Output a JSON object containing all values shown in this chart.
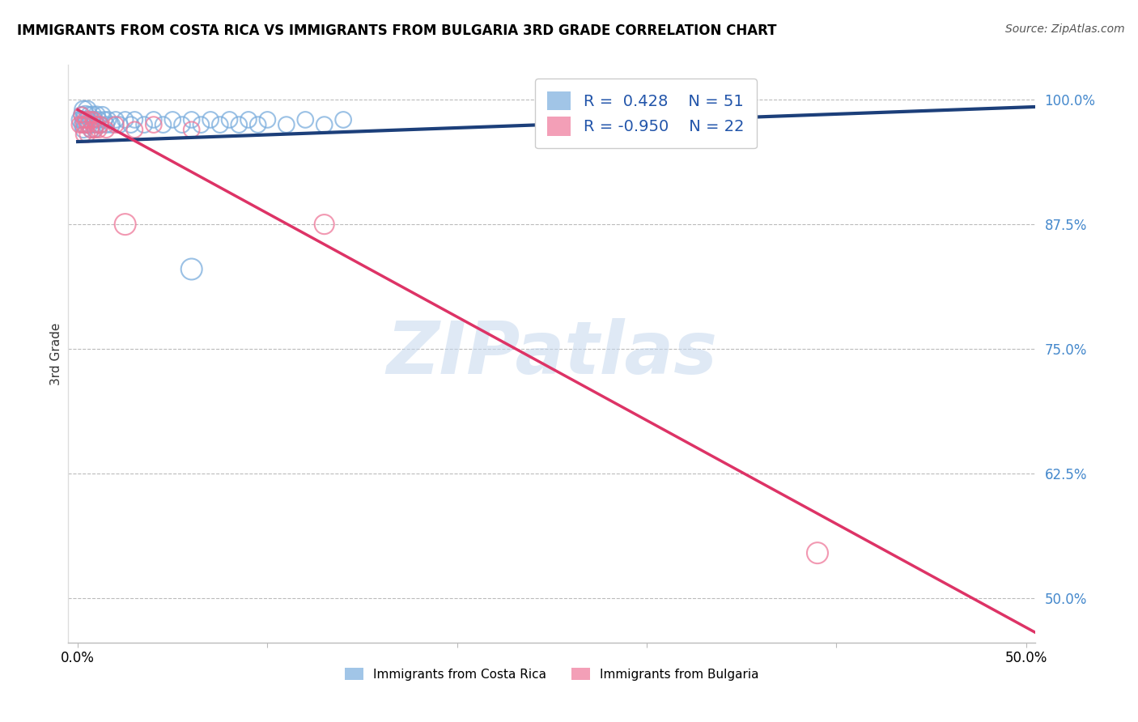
{
  "title": "IMMIGRANTS FROM COSTA RICA VS IMMIGRANTS FROM BULGARIA 3RD GRADE CORRELATION CHART",
  "source_text": "Source: ZipAtlas.com",
  "ylabel": "3rd Grade",
  "legend_left_label": "Immigrants from Costa Rica",
  "legend_right_label": "Immigrants from Bulgaria",
  "xlim": [
    -0.005,
    0.505
  ],
  "ylim": [
    0.455,
    1.035
  ],
  "yticks": [
    0.5,
    0.625,
    0.75,
    0.875,
    1.0
  ],
  "ytick_labels": [
    "50.0%",
    "62.5%",
    "75.0%",
    "87.5%",
    "100.0%"
  ],
  "xticks": [
    0.0,
    0.1,
    0.2,
    0.3,
    0.4,
    0.5
  ],
  "xtick_labels": [
    "0.0%",
    "",
    "",
    "",
    "",
    "50.0%"
  ],
  "blue_R": 0.428,
  "blue_N": 51,
  "pink_R": -0.95,
  "pink_N": 22,
  "blue_color": "#7AADDD",
  "pink_color": "#EE7799",
  "blue_line_color": "#1C3F7A",
  "pink_line_color": "#DD3366",
  "legend_text_color": "#2255AA",
  "watermark_color": "#C5D8EE",
  "grid_color": "#BBBBBB",
  "ytick_color": "#4488CC",
  "blue_scatter_x": [
    0.001,
    0.002,
    0.002,
    0.003,
    0.003,
    0.003,
    0.004,
    0.004,
    0.005,
    0.005,
    0.006,
    0.006,
    0.007,
    0.007,
    0.008,
    0.008,
    0.009,
    0.009,
    0.01,
    0.01,
    0.011,
    0.012,
    0.013,
    0.014,
    0.015,
    0.016,
    0.018,
    0.02,
    0.022,
    0.025,
    0.028,
    0.03,
    0.035,
    0.04,
    0.045,
    0.05,
    0.055,
    0.06,
    0.065,
    0.07,
    0.075,
    0.08,
    0.085,
    0.09,
    0.095,
    0.1,
    0.11,
    0.12,
    0.13,
    0.14,
    0.06
  ],
  "blue_scatter_y": [
    0.98,
    0.985,
    0.975,
    0.99,
    0.98,
    0.97,
    0.985,
    0.975,
    0.99,
    0.98,
    0.975,
    0.985,
    0.98,
    0.97,
    0.985,
    0.975,
    0.98,
    0.97,
    0.985,
    0.975,
    0.98,
    0.975,
    0.985,
    0.98,
    0.975,
    0.98,
    0.975,
    0.98,
    0.975,
    0.98,
    0.975,
    0.98,
    0.975,
    0.98,
    0.975,
    0.98,
    0.975,
    0.98,
    0.975,
    0.98,
    0.975,
    0.98,
    0.975,
    0.98,
    0.975,
    0.98,
    0.975,
    0.98,
    0.975,
    0.98,
    0.83
  ],
  "blue_scatter_s": [
    200,
    200,
    180,
    250,
    220,
    200,
    250,
    220,
    250,
    220,
    220,
    200,
    220,
    200,
    220,
    200,
    200,
    180,
    220,
    200,
    200,
    200,
    200,
    200,
    200,
    200,
    200,
    200,
    200,
    200,
    200,
    200,
    200,
    200,
    200,
    200,
    200,
    200,
    200,
    200,
    200,
    200,
    200,
    200,
    200,
    200,
    200,
    200,
    200,
    200,
    350
  ],
  "pink_scatter_x": [
    0.001,
    0.002,
    0.003,
    0.003,
    0.004,
    0.005,
    0.005,
    0.006,
    0.007,
    0.008,
    0.009,
    0.01,
    0.011,
    0.012,
    0.015,
    0.02,
    0.025,
    0.03,
    0.04,
    0.06,
    0.13,
    0.39
  ],
  "pink_scatter_y": [
    0.975,
    0.985,
    0.975,
    0.965,
    0.98,
    0.975,
    0.965,
    0.98,
    0.97,
    0.98,
    0.97,
    0.975,
    0.97,
    0.975,
    0.97,
    0.975,
    0.875,
    0.97,
    0.975,
    0.97,
    0.875,
    0.545
  ],
  "pink_scatter_s": [
    200,
    180,
    200,
    180,
    200,
    200,
    180,
    200,
    200,
    200,
    200,
    200,
    200,
    200,
    200,
    200,
    350,
    200,
    200,
    200,
    300,
    350
  ],
  "blue_trend_x": [
    0.0,
    0.505
  ],
  "blue_trend_y": [
    0.958,
    0.993
  ],
  "pink_trend_x": [
    0.0,
    0.505
  ],
  "pink_trend_y": [
    0.99,
    0.465
  ]
}
